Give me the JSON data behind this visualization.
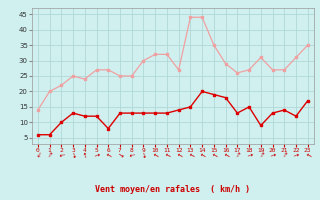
{
  "x": [
    0,
    1,
    2,
    3,
    4,
    5,
    6,
    7,
    8,
    9,
    10,
    11,
    12,
    13,
    14,
    15,
    16,
    17,
    18,
    19,
    20,
    21,
    22,
    23
  ],
  "rafales": [
    14,
    20,
    22,
    25,
    24,
    27,
    27,
    25,
    25,
    30,
    32,
    32,
    27,
    44,
    44,
    35,
    29,
    26,
    27,
    31,
    27,
    27,
    31,
    35
  ],
  "moyen": [
    6,
    6,
    10,
    13,
    12,
    12,
    8,
    13,
    13,
    13,
    13,
    13,
    14,
    15,
    20,
    19,
    18,
    13,
    15,
    9,
    13,
    14,
    12,
    17
  ],
  "color_rafales": "#f0a0a0",
  "color_moyen": "#dd0000",
  "bg_color": "#d0f0f0",
  "grid_color": "#b0d8d8",
  "ylabel_ticks": [
    5,
    10,
    15,
    20,
    25,
    30,
    35,
    40,
    45
  ],
  "xlabel": "Vent moyen/en rafales  ( km/h )",
  "ylim": [
    3,
    47
  ],
  "xlim": [
    -0.5,
    23.5
  ],
  "arrow_symbol": "↘"
}
